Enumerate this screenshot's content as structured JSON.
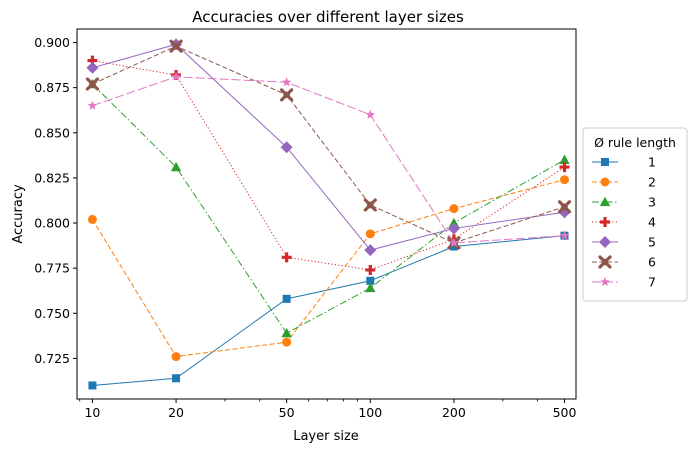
{
  "chart_data": {
    "type": "line",
    "title": "Accuracies over different layer sizes",
    "xlabel": "Layer size",
    "ylabel": "Accuracy",
    "xscale": "log",
    "xlim": [
      8.8,
      550
    ],
    "ylim": [
      0.7025,
      0.9075
    ],
    "x": [
      10,
      20,
      50,
      100,
      200,
      500
    ],
    "x_tick_labels": [
      "10",
      "20",
      "50",
      "100",
      "200",
      "500"
    ],
    "y_ticks": [
      0.725,
      0.75,
      0.775,
      0.8,
      0.825,
      0.85,
      0.875,
      0.9
    ],
    "y_tick_labels": [
      "0.725",
      "0.750",
      "0.775",
      "0.800",
      "0.825",
      "0.850",
      "0.875",
      "0.900"
    ],
    "legend_title": "Ø rule length",
    "legend_position": "outside-right",
    "grid": false,
    "series": [
      {
        "name": "1",
        "color": "#1f77b4",
        "marker": "square",
        "dash": "solid",
        "values": [
          0.71,
          0.714,
          0.758,
          0.768,
          0.787,
          0.793
        ]
      },
      {
        "name": "2",
        "color": "#ff7f0e",
        "marker": "circle",
        "dash": "dashed",
        "values": [
          0.802,
          0.726,
          0.734,
          0.794,
          0.808,
          0.824
        ]
      },
      {
        "name": "3",
        "color": "#2ca02c",
        "marker": "triangle",
        "dash": "dashdot",
        "values": [
          0.877,
          0.831,
          0.739,
          0.764,
          0.8,
          0.835
        ]
      },
      {
        "name": "4",
        "color": "#d62728",
        "marker": "plus",
        "dash": "dotted",
        "values": [
          0.89,
          0.882,
          0.781,
          0.774,
          0.791,
          0.831
        ]
      },
      {
        "name": "5",
        "color": "#9467bd",
        "marker": "diamond",
        "dash": "solid",
        "values": [
          0.886,
          0.899,
          0.842,
          0.785,
          0.797,
          0.806
        ]
      },
      {
        "name": "6",
        "color": "#8c564b",
        "marker": "xcross",
        "dash": "dashed",
        "values": [
          0.877,
          0.898,
          0.871,
          0.81,
          0.789,
          0.809
        ]
      },
      {
        "name": "7",
        "color": "#e377c2",
        "marker": "star",
        "dash": "longdash",
        "values": [
          0.865,
          0.881,
          0.878,
          0.86,
          0.789,
          0.793
        ]
      }
    ]
  }
}
